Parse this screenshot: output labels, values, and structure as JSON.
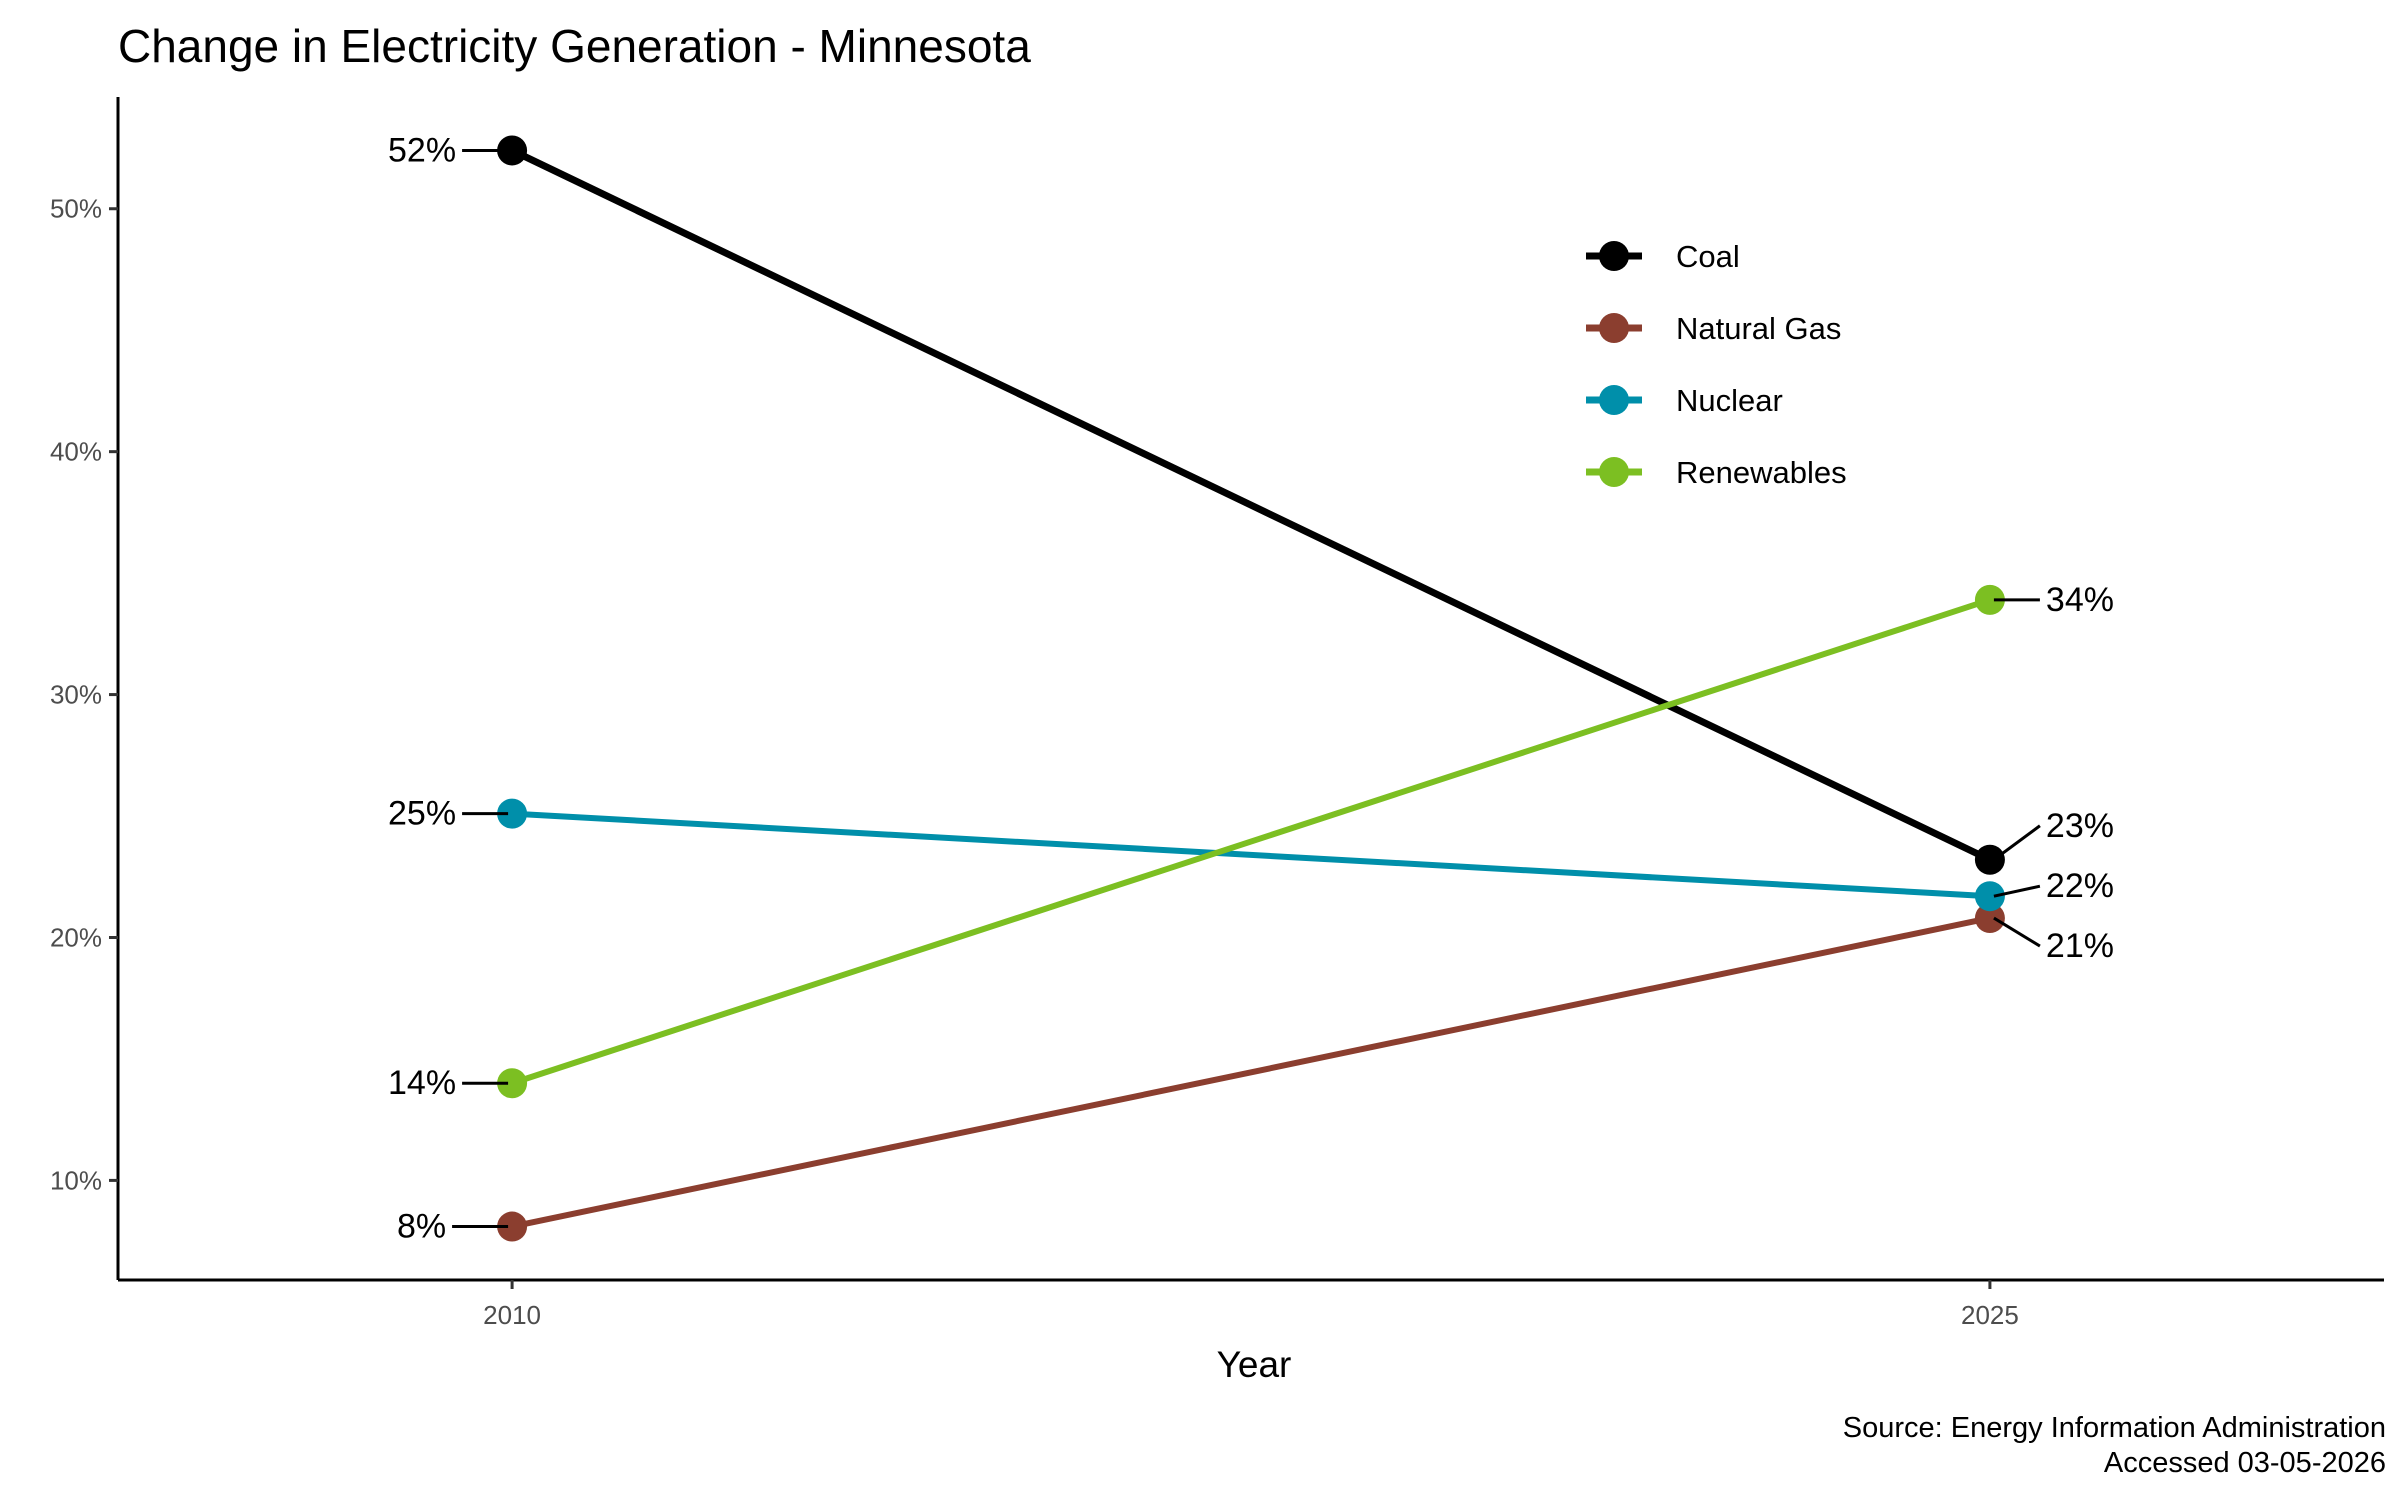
{
  "chart_data": {
    "type": "line",
    "title": "Change in Electricity Generation - Minnesota",
    "xlabel": "Year",
    "ylabel": "",
    "caption_lines": [
      "Source: Energy Information Administration",
      "Accessed 03-05-2026"
    ],
    "x": [
      2010,
      2025
    ],
    "x_tick_labels": [
      "2010",
      "2025"
    ],
    "xlim": [
      2006,
      2029
    ],
    "ylim": [
      5.9,
      54.6
    ],
    "y_ticks": [
      10,
      20,
      30,
      40,
      50
    ],
    "y_tick_labels": [
      "10%",
      "20%",
      "30%",
      "40%",
      "50%"
    ],
    "grid": false,
    "legend_position": "top-right",
    "series": [
      {
        "name": "Coal",
        "color": "#000000",
        "values": [
          52.4,
          23.2
        ],
        "labels": [
          "52%",
          "23%"
        ]
      },
      {
        "name": "Natural Gas",
        "color": "#8B3E2F",
        "values": [
          8.1,
          20.8
        ],
        "labels": [
          "8%",
          "21%"
        ]
      },
      {
        "name": "Nuclear",
        "color": "#008FAA",
        "values": [
          25.1,
          21.7
        ],
        "labels": [
          "25%",
          "22%"
        ]
      },
      {
        "name": "Renewables",
        "color": "#7CBF22",
        "values": [
          14.0,
          33.9
        ],
        "labels": [
          "14%",
          "34%"
        ]
      }
    ]
  }
}
